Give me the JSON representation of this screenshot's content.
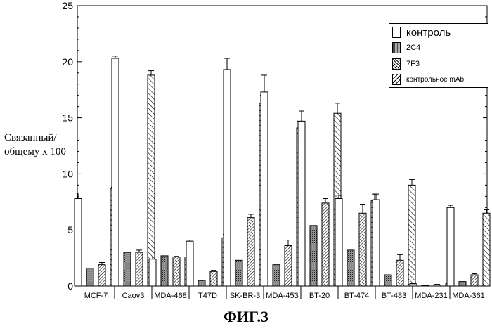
{
  "chart_data": {
    "type": "bar",
    "caption": "ФИГ.3",
    "ylabel_lines": [
      "Связанный/",
      "общему x 100"
    ],
    "ylim": [
      0,
      25
    ],
    "yticks": [
      0,
      5,
      10,
      15,
      20,
      25
    ],
    "grid": false,
    "legend_position": "top-right",
    "categories": [
      "MCF-7",
      "Caov3",
      "MDA-468",
      "T47D",
      "SK-BR-3",
      "MDA-453",
      "BT-20",
      "BT-474",
      "BT-483",
      "MDA-231",
      "MDA-361"
    ],
    "series": [
      {
        "name": "контроль",
        "pattern": "white",
        "values": [
          7.8,
          20.3,
          2.4,
          4.0,
          19.3,
          17.3,
          14.7,
          7.8,
          7.7,
          0.2,
          7.0
        ],
        "errors": [
          0.5,
          0.2,
          0.2,
          0.1,
          1.0,
          1.5,
          0.9,
          0.3,
          0.5,
          0.05,
          0.2
        ]
      },
      {
        "name": "2C4",
        "pattern": "stipple",
        "values": [
          1.6,
          3.0,
          2.7,
          0.5,
          2.3,
          1.9,
          5.4,
          3.2,
          1.0,
          0.05,
          0.4
        ]
      },
      {
        "name": "7F3",
        "pattern": "hatch-fine",
        "values": [
          1.9,
          3.0,
          2.6,
          1.3,
          6.1,
          3.6,
          7.4,
          6.5,
          2.3,
          0.1,
          1.0
        ],
        "errors": [
          0.2,
          0.2,
          0.05,
          0.1,
          0.3,
          0.5,
          0.4,
          0.8,
          0.5,
          0.05,
          0.1
        ]
      },
      {
        "name": "контрольное mAb",
        "pattern": "hatch-wide",
        "values": [
          8.7,
          18.8,
          2.6,
          4.3,
          16.3,
          14.1,
          15.4,
          7.6,
          9.0,
          0.2,
          6.5
        ],
        "errors": [
          0.1,
          0.4,
          0.05,
          0.3,
          0.7,
          0.6,
          0.9,
          0.6,
          0.5,
          0.05,
          0.3
        ]
      }
    ]
  }
}
